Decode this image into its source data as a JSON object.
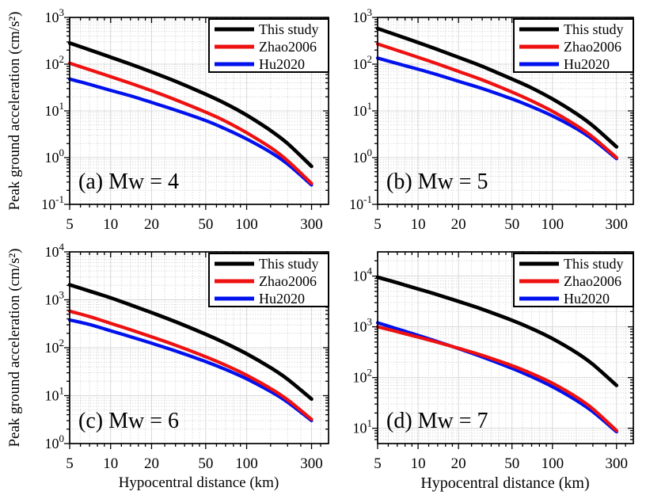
{
  "figure": {
    "background": "#ffffff",
    "ylabel": "Peak ground acceleration (cm/s²)",
    "xlabel": "Hypocentral distance (km)"
  },
  "legend": {
    "position": "top-right",
    "border_color": "#000000",
    "entries": [
      {
        "label": "This study",
        "color": "#000000"
      },
      {
        "label": "Zhao2006",
        "color": "#ee1111"
      },
      {
        "label": "Hu2020",
        "color": "#0011ee"
      }
    ]
  },
  "chart_data": [
    {
      "id": "a",
      "type": "line",
      "panel_label": "(a) Mw = 4",
      "xscale": "log",
      "yscale": "log",
      "xlabel": "Hypocentral distance (km)",
      "ylabel": "Peak ground acceleration (cm/s²)",
      "xlim": [
        5,
        400
      ],
      "ylim": [
        0.1,
        1000
      ],
      "x_ticks": [
        5,
        10,
        20,
        50,
        100,
        300
      ],
      "y_tick_exponents": [
        3,
        2,
        1,
        0,
        -1
      ],
      "x": [
        5,
        7,
        10,
        14,
        20,
        30,
        50,
        70,
        100,
        150,
        200,
        300
      ],
      "series": [
        {
          "name": "This study",
          "color": "#000000",
          "values": [
            283,
            203,
            141,
            100,
            68,
            43,
            22.7,
            14.3,
            8.1,
            3.8,
            2.0,
            0.65
          ]
        },
        {
          "name": "Zhao2006",
          "color": "#ee1111",
          "values": [
            105,
            76,
            54,
            39,
            27,
            17.3,
            9.4,
            6.0,
            3.4,
            1.64,
            0.86,
            0.28
          ]
        },
        {
          "name": "Hu2020",
          "color": "#0011ee",
          "values": [
            48,
            37,
            27.5,
            21,
            15.2,
            10.4,
            6.2,
            4.1,
            2.5,
            1.3,
            0.73,
            0.26
          ]
        }
      ]
    },
    {
      "id": "b",
      "type": "line",
      "panel_label": "(b) Mw = 5",
      "xscale": "log",
      "yscale": "log",
      "xlabel": "Hypocentral distance (km)",
      "ylabel": "Peak ground acceleration (cm/s²)",
      "xlim": [
        5,
        400
      ],
      "ylim": [
        0.1,
        1000
      ],
      "x_ticks": [
        5,
        10,
        20,
        50,
        100,
        300
      ],
      "y_tick_exponents": [
        3,
        2,
        1,
        0,
        -1
      ],
      "x": [
        5,
        7,
        10,
        14,
        20,
        30,
        50,
        70,
        100,
        150,
        200,
        300
      ],
      "series": [
        {
          "name": "This study",
          "color": "#000000",
          "values": [
            580,
            415,
            290,
            205,
            140,
            90,
            48,
            31,
            18,
            8.8,
            4.8,
            1.7
          ]
        },
        {
          "name": "Zhao2006",
          "color": "#ee1111",
          "values": [
            270,
            197,
            140,
            101,
            70,
            46,
            25.3,
            16.4,
            9.8,
            4.9,
            2.75,
            1.0
          ]
        },
        {
          "name": "Hu2020",
          "color": "#0011ee",
          "values": [
            135,
            103,
            78,
            59,
            43,
            30,
            18,
            12.3,
            7.8,
            4.2,
            2.44,
            0.95
          ]
        }
      ]
    },
    {
      "id": "c",
      "type": "line",
      "panel_label": "(c) Mw = 6",
      "xscale": "log",
      "yscale": "log",
      "xlabel": "Hypocentral distance (km)",
      "ylabel": "Peak ground acceleration (cm/s²)",
      "xlim": [
        5,
        400
      ],
      "ylim": [
        1,
        10000
      ],
      "x_ticks": [
        5,
        10,
        20,
        50,
        100,
        300
      ],
      "y_tick_exponents": [
        4,
        3,
        2,
        1,
        0
      ],
      "x": [
        5,
        7,
        10,
        14,
        20,
        30,
        50,
        70,
        100,
        150,
        200,
        300
      ],
      "series": [
        {
          "name": "This study",
          "color": "#000000",
          "values": [
            2050,
            1520,
            1100,
            785,
            541,
            348,
            191,
            124,
            74.6,
            38.3,
            22,
            8.5
          ]
        },
        {
          "name": "Zhao2006",
          "color": "#ee1111",
          "values": [
            580,
            446,
            323,
            237,
            169,
            113,
            64.8,
            43.3,
            26.7,
            14.1,
            8.2,
            3.2
          ]
        },
        {
          "name": "Hu2020",
          "color": "#0011ee",
          "values": [
            380,
            305,
            226,
            170,
            124,
            85.7,
            51.3,
            35.2,
            22.4,
            12.2,
            7.3,
            3.0
          ]
        }
      ]
    },
    {
      "id": "d",
      "type": "line",
      "panel_label": "(d) Mw = 7",
      "xscale": "log",
      "yscale": "log",
      "xlabel": "Hypocentral distance (km)",
      "ylabel": "Peak ground acceleration (cm/s²)",
      "xlim": [
        5,
        400
      ],
      "ylim": [
        5,
        30000
      ],
      "x_ticks": [
        5,
        10,
        20,
        50,
        100,
        300
      ],
      "y_tick_exponents": [
        4,
        3,
        2,
        1
      ],
      "x": [
        5,
        7,
        10,
        14,
        20,
        30,
        50,
        70,
        100,
        150,
        200,
        300
      ],
      "series": [
        {
          "name": "This study",
          "color": "#000000",
          "values": [
            9500,
            7380,
            5580,
            4280,
            3170,
            2220,
            1345,
            925,
            585,
            313,
            182,
            70
          ]
        },
        {
          "name": "Zhao2006",
          "color": "#ee1111",
          "values": [
            1000,
            800,
            627,
            494,
            378,
            274,
            172,
            120,
            77.4,
            41.7,
            24.1,
            9.0
          ]
        },
        {
          "name": "Hu2020",
          "color": "#0011ee",
          "values": [
            1200,
            912,
            678,
            509,
            372,
            255,
            152,
            104,
            65.8,
            35.6,
            21.1,
            8.5
          ]
        }
      ]
    }
  ]
}
